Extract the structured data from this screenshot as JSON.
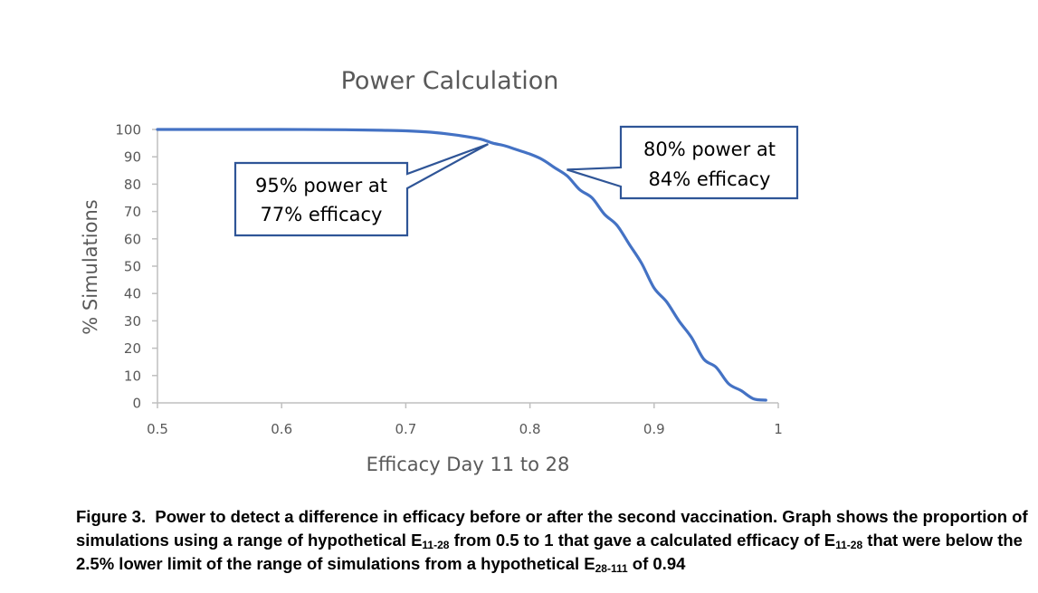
{
  "chart_data": {
    "type": "line",
    "title": "Power Calculation",
    "xlabel": "Efficacy Day 11 to 28",
    "ylabel": "% Simulations",
    "xlim": [
      0.5,
      1.0
    ],
    "ylim": [
      0,
      100
    ],
    "xticks": [
      "0.5",
      "0.6",
      "0.7",
      "0.8",
      "0.9",
      "1"
    ],
    "xtick_values": [
      0.5,
      0.6,
      0.7,
      0.8,
      0.9,
      1.0
    ],
    "yticks": [
      "0",
      "10",
      "20",
      "30",
      "40",
      "50",
      "60",
      "70",
      "80",
      "90",
      "100"
    ],
    "ytick_values": [
      0,
      10,
      20,
      30,
      40,
      50,
      60,
      70,
      80,
      90,
      100
    ],
    "grid": false,
    "legend": "none",
    "series": [
      {
        "name": "% Simulations",
        "color": "#4472C4",
        "x": [
          0.5,
          0.55,
          0.6,
          0.65,
          0.68,
          0.7,
          0.72,
          0.74,
          0.76,
          0.77,
          0.78,
          0.79,
          0.8,
          0.81,
          0.82,
          0.83,
          0.84,
          0.85,
          0.86,
          0.87,
          0.88,
          0.89,
          0.9,
          0.91,
          0.92,
          0.93,
          0.94,
          0.95,
          0.96,
          0.97,
          0.98,
          0.99
        ],
        "y": [
          100,
          100,
          100,
          99.9,
          99.7,
          99.5,
          99,
          98,
          96.5,
          95,
          94,
          92.5,
          91,
          89,
          86,
          83,
          78,
          75,
          69,
          65,
          58,
          51,
          42,
          37,
          30,
          24,
          16,
          13,
          7,
          4.5,
          1.5,
          1
        ]
      }
    ],
    "annotations": [
      {
        "line1": "95% power at",
        "line2": "77% efficacy",
        "x": 0.77,
        "y": 95
      },
      {
        "line1": "80% power at",
        "line2": "84% efficacy",
        "x": 0.84,
        "y": 80
      }
    ]
  },
  "caption": {
    "label": "Figure 3.",
    "line1_text": "Power to detect a difference in efficacy before or after the second vaccination. Graph shows the proportion of simulations using a range of hypothetical ",
    "e1": "E",
    "e1_sub": "11-28",
    "line2_text": " from 0.5 to 1 that gave a calculated efficacy of ",
    "e2": "E",
    "e2_sub": "11-28",
    "line3_text": " that were below the 2.5% lower limit of the range of simulations from a hypothetical ",
    "e3": "E",
    "e3_sub": "28-111",
    "line4_text": " of 0.94"
  }
}
